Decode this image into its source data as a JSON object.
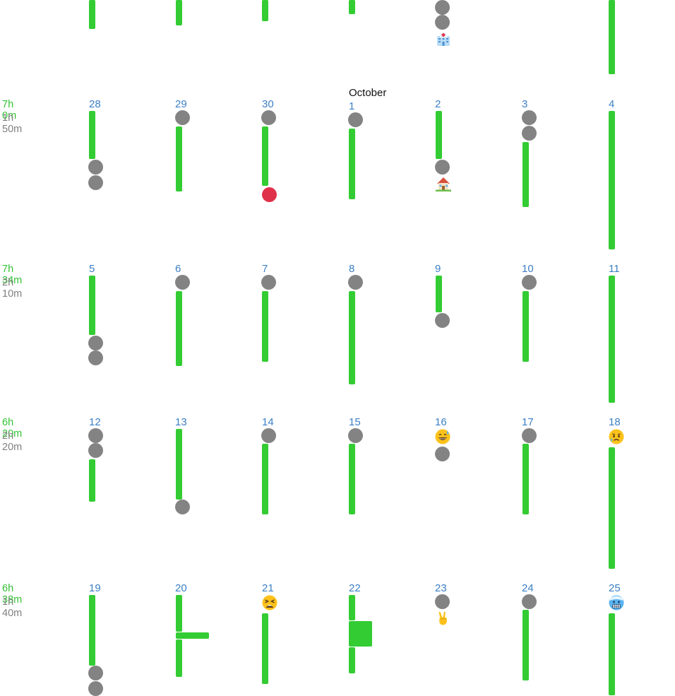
{
  "month_label": "October",
  "colors": {
    "bar": "#33cc33",
    "dot": "#838383",
    "alert_dot": "#e0314b",
    "day_number": "#3b7fc4",
    "week_total": "#33c233",
    "week_sub": "#808080"
  },
  "weeks": [
    {
      "total": "7h 0m",
      "sub": "1h 50m",
      "days": [
        {
          "num": "28",
          "items": [
            "bar",
            "dot",
            "dot"
          ]
        },
        {
          "num": "29",
          "items": [
            "dot",
            "bar"
          ]
        },
        {
          "num": "30",
          "items": [
            "dot",
            "bar",
            "alert-dot"
          ]
        },
        {
          "num": "1",
          "items": [
            "dot",
            "bar"
          ]
        },
        {
          "num": "2",
          "items": [
            "bar",
            "dot",
            "house-emoji"
          ]
        },
        {
          "num": "3",
          "items": [
            "dot",
            "dot",
            "bar"
          ]
        },
        {
          "num": "4",
          "items": [
            "bar"
          ]
        }
      ]
    },
    {
      "total": "7h 34m",
      "sub": "2h 10m",
      "days": [
        {
          "num": "5",
          "items": [
            "bar",
            "dot",
            "dot"
          ]
        },
        {
          "num": "6",
          "items": [
            "dot",
            "bar"
          ]
        },
        {
          "num": "7",
          "items": [
            "dot",
            "bar"
          ]
        },
        {
          "num": "8",
          "items": [
            "dot",
            "bar"
          ]
        },
        {
          "num": "9",
          "items": [
            "bar",
            "dot"
          ]
        },
        {
          "num": "10",
          "items": [
            "dot",
            "bar"
          ]
        },
        {
          "num": "11",
          "items": [
            "bar"
          ]
        }
      ]
    },
    {
      "total": "6h 20m",
      "sub": "2h 20m",
      "days": [
        {
          "num": "12",
          "items": [
            "dot",
            "dot",
            "bar"
          ]
        },
        {
          "num": "13",
          "items": [
            "bar",
            "dot"
          ]
        },
        {
          "num": "14",
          "items": [
            "dot",
            "bar"
          ]
        },
        {
          "num": "15",
          "items": [
            "dot",
            "bar"
          ]
        },
        {
          "num": "16",
          "items": [
            "sweat-smile-emoji",
            "dot"
          ]
        },
        {
          "num": "17",
          "items": [
            "dot",
            "bar"
          ]
        },
        {
          "num": "18",
          "items": [
            "sad-tear-emoji",
            "bar"
          ]
        }
      ]
    },
    {
      "total": "6h 38m",
      "sub": "1h 40m",
      "days": [
        {
          "num": "19",
          "items": [
            "bar",
            "dot",
            "dot"
          ]
        },
        {
          "num": "20",
          "items": [
            "bar",
            "branch",
            "bar"
          ]
        },
        {
          "num": "21",
          "items": [
            "tired-face-emoji",
            "bar"
          ]
        },
        {
          "num": "22",
          "items": [
            "bar",
            "block",
            "bar"
          ]
        },
        {
          "num": "23",
          "items": [
            "dot",
            "victory-hand-emoji"
          ]
        },
        {
          "num": "24",
          "items": [
            "dot",
            "bar"
          ]
        },
        {
          "num": "25",
          "items": [
            "cold-face-emoji",
            "bar"
          ]
        }
      ]
    }
  ]
}
